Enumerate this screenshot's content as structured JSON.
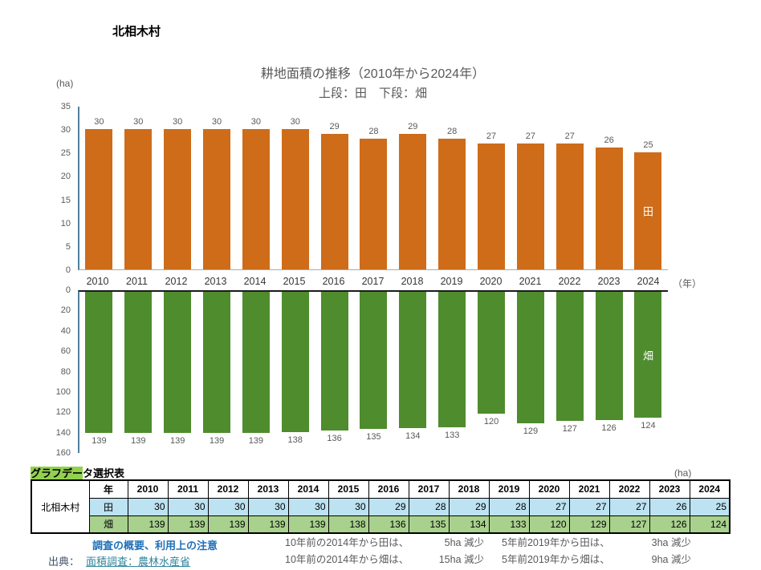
{
  "page": {
    "municipality": "北相木村",
    "unit_top": "(ha)",
    "year_axis_label": "（年）"
  },
  "chart_data": {
    "type": "bar",
    "title": "耕地面積の推移（2010年から2024年）",
    "subtitle": "上段：田　下段：畑",
    "unit": "ha",
    "grid": false,
    "value_labels": true,
    "legend_position": "in-bar-right",
    "categories": [
      "2010",
      "2011",
      "2012",
      "2013",
      "2014",
      "2015",
      "2016",
      "2017",
      "2018",
      "2019",
      "2020",
      "2021",
      "2022",
      "2023",
      "2024"
    ],
    "series": [
      {
        "name": "田",
        "orientation": "up",
        "color": "#CE6C1A",
        "ylim": [
          0,
          35
        ],
        "ticks": [
          35,
          30,
          25,
          20,
          15,
          10,
          5,
          0
        ],
        "values": [
          30,
          30,
          30,
          30,
          30,
          30,
          29,
          28,
          29,
          28,
          27,
          27,
          27,
          26,
          25
        ]
      },
      {
        "name": "畑",
        "orientation": "down",
        "color": "#4E8C2D",
        "ylim": [
          0,
          160
        ],
        "ticks": [
          0,
          20,
          40,
          60,
          80,
          100,
          120,
          140,
          160
        ],
        "values": [
          139,
          139,
          139,
          139,
          139,
          138,
          136,
          135,
          134,
          133,
          120,
          129,
          127,
          126,
          124
        ]
      }
    ]
  },
  "table": {
    "title_highlight": "グラフデー",
    "title_rest": "タ選択表",
    "unit": "(ha)",
    "corner_label": "北相木村",
    "year_header": "年",
    "row_colors": [
      "#BDE2F1",
      "#A9D18E"
    ]
  },
  "footer": {
    "notes_link": "調査の概要、利用上の注意",
    "source_label": "出典：",
    "source_link": "面積調査：農林水産省",
    "comparisons": [
      {
        "label10": "10年前の2014年から田は、",
        "change10": "5ha 減少",
        "label5": "5年前2019年から田は、",
        "change5": "3ha 減少"
      },
      {
        "label10": "10年前の2014年から畑は、",
        "change10": "15ha 減少",
        "label5": "5年前2019年から畑は、",
        "change5": "9ha 減少"
      }
    ]
  }
}
